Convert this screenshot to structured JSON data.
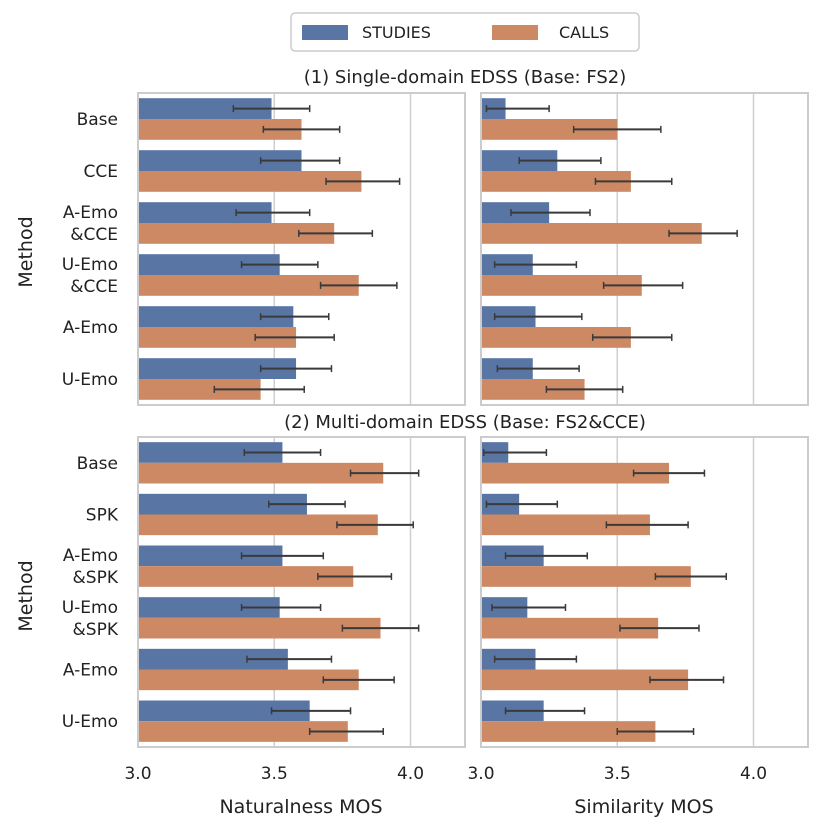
{
  "legend": {
    "entries": [
      {
        "name": "STUDIES",
        "color": "#5875a4"
      },
      {
        "name": "CALLS",
        "color": "#cc8963"
      }
    ],
    "position": "top-center"
  },
  "chart_data": [
    {
      "type": "bar",
      "orientation": "horizontal",
      "title": "(1) Single-domain EDSS (Base: FS2)",
      "ylabel": "Method",
      "xlabel": "",
      "xlim": [
        3.0,
        4.2
      ],
      "categories": [
        "Base",
        "CCE",
        "A-Emo\n&CCE",
        "U-Emo\n&CCE",
        "A-Emo",
        "U-Emo"
      ],
      "series": [
        {
          "name": "STUDIES",
          "values": [
            3.49,
            3.6,
            3.49,
            3.52,
            3.57,
            3.58
          ],
          "err_low": [
            3.35,
            3.45,
            3.36,
            3.38,
            3.45,
            3.45
          ],
          "err_high": [
            3.63,
            3.74,
            3.63,
            3.66,
            3.7,
            3.71
          ]
        },
        {
          "name": "CALLS",
          "values": [
            3.6,
            3.82,
            3.72,
            3.81,
            3.58,
            3.45
          ],
          "err_low": [
            3.46,
            3.69,
            3.59,
            3.67,
            3.43,
            3.28
          ],
          "err_high": [
            3.74,
            3.96,
            3.86,
            3.95,
            3.72,
            3.61
          ]
        }
      ]
    },
    {
      "type": "bar",
      "orientation": "horizontal",
      "title": "",
      "ylabel": "",
      "xlabel": "",
      "xlim": [
        3.0,
        4.2
      ],
      "categories": [
        "Base",
        "CCE",
        "A-Emo\n&CCE",
        "U-Emo\n&CCE",
        "A-Emo",
        "U-Emo"
      ],
      "series": [
        {
          "name": "STUDIES",
          "values": [
            3.09,
            3.28,
            3.25,
            3.19,
            3.2,
            3.19
          ],
          "err_low": [
            3.02,
            3.14,
            3.11,
            3.05,
            3.05,
            3.06
          ],
          "err_high": [
            3.25,
            3.44,
            3.4,
            3.35,
            3.37,
            3.36
          ]
        },
        {
          "name": "CALLS",
          "values": [
            3.5,
            3.55,
            3.81,
            3.59,
            3.55,
            3.38
          ],
          "err_low": [
            3.34,
            3.42,
            3.69,
            3.45,
            3.41,
            3.24
          ],
          "err_high": [
            3.66,
            3.7,
            3.94,
            3.74,
            3.7,
            3.52
          ]
        }
      ]
    },
    {
      "type": "bar",
      "orientation": "horizontal",
      "title": "(2) Multi-domain EDSS (Base: FS2&CCE)",
      "ylabel": "Method",
      "xlabel": "Naturalness MOS",
      "xlim": [
        3.0,
        4.2
      ],
      "xticks": [
        "3.0",
        "3.5",
        "4.0"
      ],
      "categories": [
        "Base",
        "SPK",
        "A-Emo\n&SPK",
        "U-Emo\n&SPK",
        "A-Emo",
        "U-Emo"
      ],
      "series": [
        {
          "name": "STUDIES",
          "values": [
            3.53,
            3.62,
            3.53,
            3.52,
            3.55,
            3.63
          ],
          "err_low": [
            3.39,
            3.48,
            3.38,
            3.38,
            3.4,
            3.49
          ],
          "err_high": [
            3.67,
            3.76,
            3.68,
            3.67,
            3.71,
            3.78
          ]
        },
        {
          "name": "CALLS",
          "values": [
            3.9,
            3.88,
            3.79,
            3.89,
            3.81,
            3.77
          ],
          "err_low": [
            3.78,
            3.73,
            3.66,
            3.75,
            3.68,
            3.63
          ],
          "err_high": [
            4.03,
            4.01,
            3.93,
            4.03,
            3.94,
            3.9
          ]
        }
      ]
    },
    {
      "type": "bar",
      "orientation": "horizontal",
      "title": "",
      "ylabel": "",
      "xlabel": "Similarity MOS",
      "xlim": [
        3.0,
        4.2
      ],
      "xticks": [
        "3.0",
        "3.5",
        "4.0"
      ],
      "categories": [
        "Base",
        "SPK",
        "A-Emo\n&SPK",
        "U-Emo\n&SPK",
        "A-Emo",
        "U-Emo"
      ],
      "series": [
        {
          "name": "STUDIES",
          "values": [
            3.1,
            3.14,
            3.23,
            3.17,
            3.2,
            3.23
          ],
          "err_low": [
            3.01,
            3.02,
            3.09,
            3.04,
            3.05,
            3.09
          ],
          "err_high": [
            3.24,
            3.28,
            3.39,
            3.31,
            3.35,
            3.38
          ]
        },
        {
          "name": "CALLS",
          "values": [
            3.69,
            3.62,
            3.77,
            3.65,
            3.76,
            3.64
          ],
          "err_low": [
            3.56,
            3.46,
            3.64,
            3.51,
            3.62,
            3.5
          ],
          "err_high": [
            3.82,
            3.76,
            3.9,
            3.8,
            3.89,
            3.78
          ]
        }
      ]
    }
  ]
}
